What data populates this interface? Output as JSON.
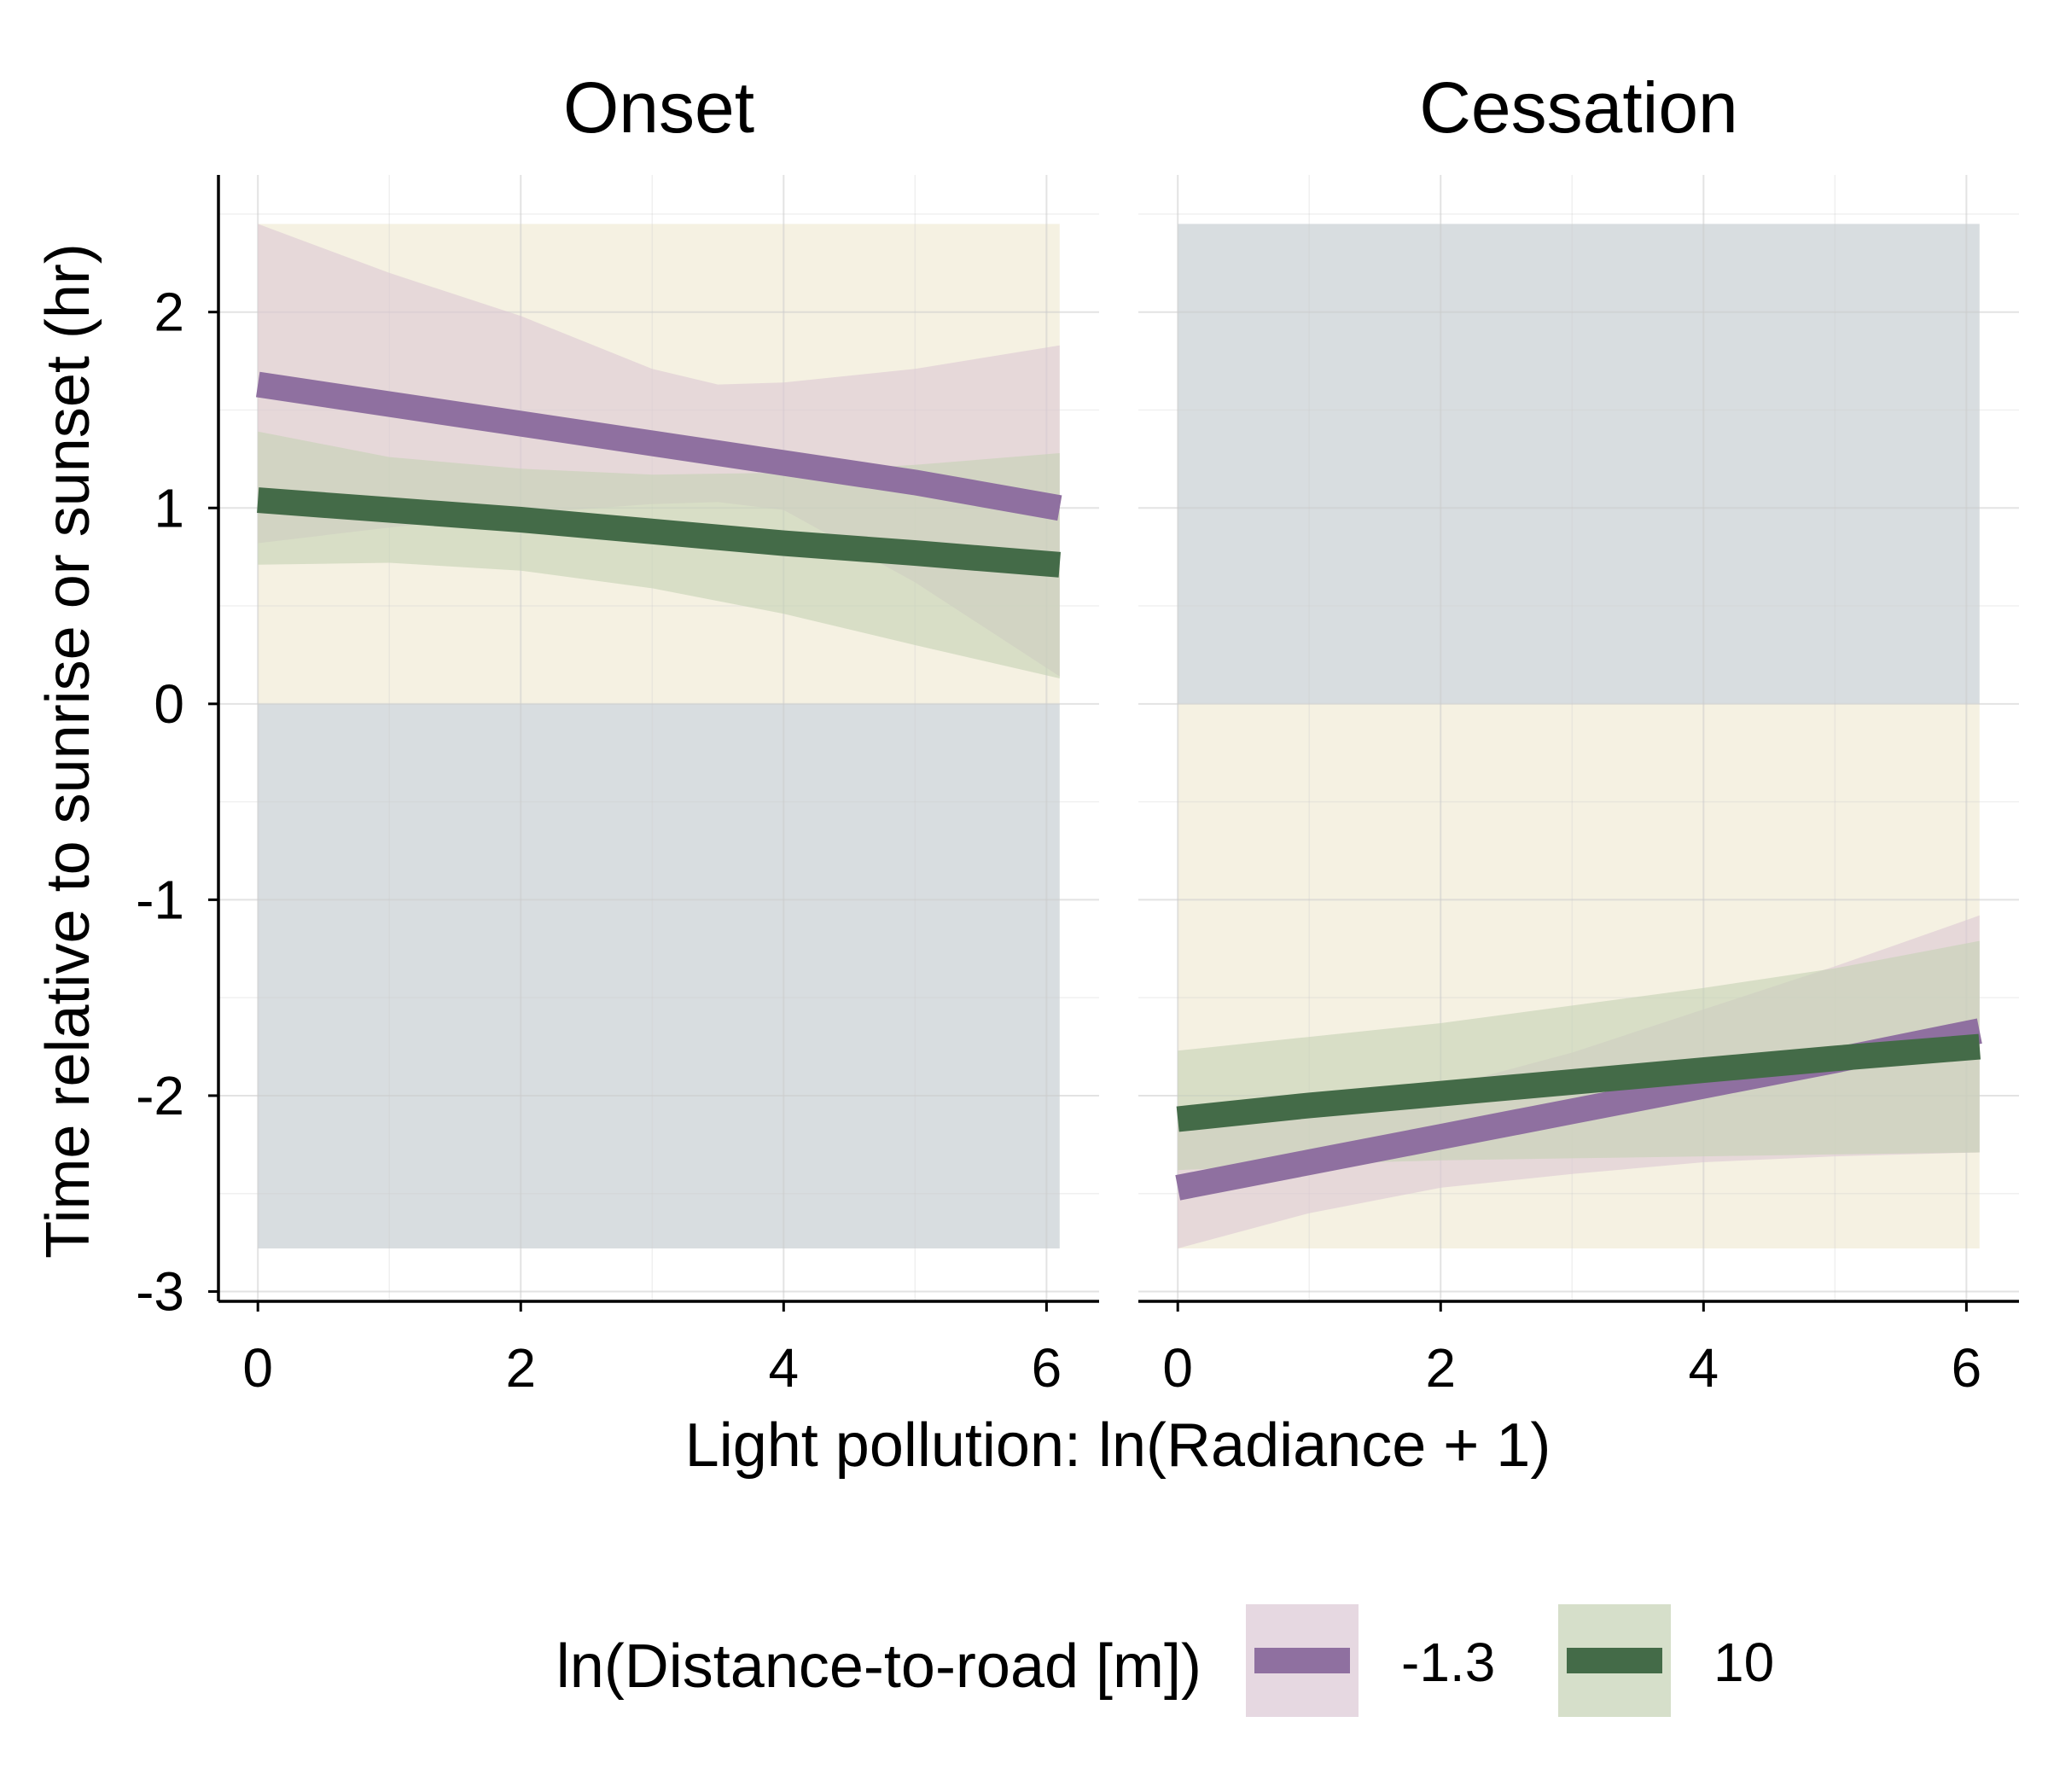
{
  "chart_data": {
    "type": "line",
    "xlabel": "Light pollution: ln(Radiance + 1)",
    "ylabel": "Time relative to sunrise or sunset (hr)",
    "xlim": [
      -0.3,
      6.4
    ],
    "ylim": [
      -3.05,
      2.7
    ],
    "x_ticks": [
      0,
      2,
      4,
      6
    ],
    "x_tick_labels": [
      "0",
      "2",
      "4",
      "6"
    ],
    "y_ticks": [
      -3,
      -2,
      -1,
      0,
      1,
      2
    ],
    "y_tick_labels": [
      "-3",
      "-2",
      "-1",
      "0",
      "1",
      "2"
    ],
    "grid": true,
    "legend": {
      "title": "ln(Distance-to-road [m])",
      "position": "bottom",
      "entries": [
        "-1.3",
        "10"
      ]
    },
    "colors": {
      "series_-1.3": "#8f70a0",
      "series_10": "#446b48",
      "ribbon_-1.3": "#dcc8d4",
      "ribbon_10": "#c4d2b4",
      "band_day": "#f5f1e2",
      "band_night": "#d8dde0"
    },
    "panels": [
      {
        "title": "Onset",
        "background_bands": [
          {
            "shade": "day",
            "y_from": 0,
            "y_to": 2.45,
            "x_from": 0,
            "x_to": 6.1
          },
          {
            "shade": "night",
            "y_from": -2.78,
            "y_to": 0,
            "x_from": 0,
            "x_to": 6.1
          }
        ],
        "series": [
          {
            "name": "-1.3",
            "x": [
              0,
              1,
              2,
              3,
              3.5,
              4,
              5,
              6.1
            ],
            "y": [
              1.63,
              1.53,
              1.43,
              1.33,
              1.28,
              1.23,
              1.13,
              1.0
            ],
            "lower": [
              0.82,
              0.9,
              0.97,
              1.02,
              1.03,
              0.99,
              0.62,
              0.14
            ],
            "upper": [
              2.45,
              2.2,
              1.98,
              1.71,
              1.63,
              1.64,
              1.71,
              1.83
            ]
          },
          {
            "name": "10",
            "x": [
              0,
              1,
              2,
              3,
              4,
              5,
              6.1
            ],
            "y": [
              1.04,
              0.99,
              0.94,
              0.88,
              0.82,
              0.77,
              0.71
            ],
            "lower": [
              0.71,
              0.72,
              0.68,
              0.59,
              0.46,
              0.3,
              0.13
            ],
            "upper": [
              1.39,
              1.26,
              1.2,
              1.17,
              1.18,
              1.22,
              1.28
            ]
          }
        ]
      },
      {
        "title": "Cessation",
        "background_bands": [
          {
            "shade": "night",
            "y_from": 0,
            "y_to": 2.45,
            "x_from": 0,
            "x_to": 6.1
          },
          {
            "shade": "day",
            "y_from": -2.78,
            "y_to": 0,
            "x_from": 0,
            "x_to": 6.1
          }
        ],
        "series": [
          {
            "name": "-1.3",
            "x": [
              0,
              1,
              2,
              3,
              4,
              5,
              6.1
            ],
            "y": [
              -2.47,
              -2.34,
              -2.21,
              -2.08,
              -1.95,
              -1.82,
              -1.67
            ],
            "lower": [
              -2.78,
              -2.6,
              -2.47,
              -2.4,
              -2.34,
              -2.31,
              -2.29
            ],
            "upper": [
              -2.15,
              -2.09,
              -1.96,
              -1.78,
              -1.56,
              -1.34,
              -1.08
            ]
          },
          {
            "name": "10",
            "x": [
              0,
              1,
              2,
              3,
              4,
              5,
              6.1
            ],
            "y": [
              -2.12,
              -2.05,
              -1.99,
              -1.93,
              -1.87,
              -1.81,
              -1.75
            ],
            "lower": [
              -2.38,
              -2.35,
              -2.33,
              -2.32,
              -2.31,
              -2.3,
              -2.29
            ],
            "upper": [
              -1.77,
              -1.7,
              -1.63,
              -1.54,
              -1.45,
              -1.35,
              -1.21
            ]
          }
        ]
      }
    ]
  }
}
